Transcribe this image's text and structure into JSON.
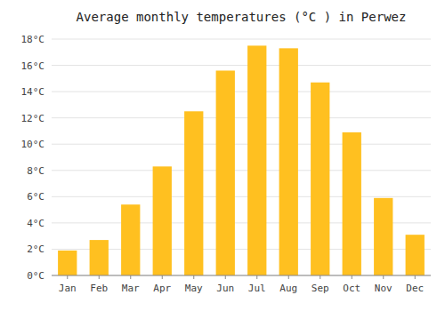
{
  "chart_data": {
    "type": "bar",
    "title": "Average monthly temperatures (°C ) in Perwez",
    "categories": [
      "Jan",
      "Feb",
      "Mar",
      "Apr",
      "May",
      "Jun",
      "Jul",
      "Aug",
      "Sep",
      "Oct",
      "Nov",
      "Dec"
    ],
    "values": [
      1.9,
      2.7,
      5.4,
      8.3,
      12.5,
      15.6,
      17.5,
      17.3,
      14.7,
      10.9,
      5.9,
      3.1
    ],
    "color": "#FFC020",
    "ylim": [
      0,
      18
    ],
    "yticks": [
      {
        "value": 0,
        "label": "0°C"
      },
      {
        "value": 2,
        "label": "2°C"
      },
      {
        "value": 4,
        "label": "4°C"
      },
      {
        "value": 6,
        "label": "6°C"
      },
      {
        "value": 8,
        "label": "8°C"
      },
      {
        "value": 10,
        "label": "10°C"
      },
      {
        "value": 12,
        "label": "12°C"
      },
      {
        "value": 14,
        "label": "14°C"
      },
      {
        "value": 16,
        "label": "16°C"
      },
      {
        "value": 18,
        "label": "18°C"
      }
    ],
    "grid": true
  }
}
